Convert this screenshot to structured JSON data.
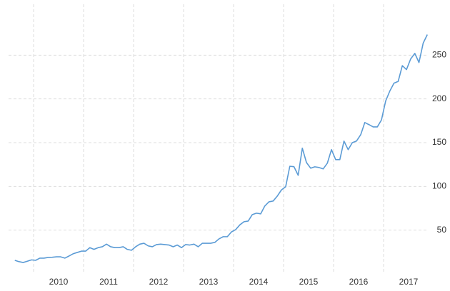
{
  "chart_data": {
    "type": "line",
    "x": [
      2009.625,
      2009.708,
      2009.792,
      2009.875,
      2009.958,
      2010.042,
      2010.125,
      2010.208,
      2010.292,
      2010.375,
      2010.458,
      2010.542,
      2010.625,
      2010.708,
      2010.792,
      2010.875,
      2010.958,
      2011.042,
      2011.125,
      2011.208,
      2011.292,
      2011.375,
      2011.458,
      2011.542,
      2011.625,
      2011.708,
      2011.792,
      2011.875,
      2011.958,
      2012.042,
      2012.125,
      2012.208,
      2012.292,
      2012.375,
      2012.458,
      2012.542,
      2012.625,
      2012.708,
      2012.792,
      2012.875,
      2012.958,
      2013.042,
      2013.125,
      2013.208,
      2013.292,
      2013.375,
      2013.458,
      2013.542,
      2013.625,
      2013.708,
      2013.792,
      2013.875,
      2013.958,
      2014.042,
      2014.125,
      2014.208,
      2014.292,
      2014.375,
      2014.458,
      2014.542,
      2014.625,
      2014.708,
      2014.792,
      2014.875,
      2014.958,
      2015.042,
      2015.125,
      2015.208,
      2015.292,
      2015.375,
      2015.458,
      2015.542,
      2015.625,
      2015.708,
      2015.792,
      2015.875,
      2015.958,
      2016.042,
      2016.125,
      2016.208,
      2016.292,
      2016.375,
      2016.458,
      2016.542,
      2016.625,
      2016.708,
      2016.792,
      2016.875,
      2016.958,
      2017.042,
      2017.125,
      2017.208,
      2017.292,
      2017.375,
      2017.458,
      2017.542,
      2017.625,
      2017.708,
      2017.792,
      2017.875
    ],
    "series": [
      {
        "color": "#5b9bd5",
        "values": [
          15.5,
          14,
          13,
          14.5,
          16,
          15.5,
          18,
          18,
          18.8,
          19,
          19.5,
          19.5,
          18,
          20.4,
          23,
          24.5,
          26,
          26,
          30,
          28,
          30,
          31,
          34,
          31,
          30,
          30,
          31,
          28,
          27,
          31,
          34,
          35,
          32,
          31,
          33.5,
          34,
          33.5,
          33,
          31,
          33,
          30,
          33.5,
          33,
          34,
          31,
          35,
          35,
          35,
          36,
          40,
          42.5,
          42.5,
          48,
          50.6,
          56,
          59.6,
          60.4,
          67.8,
          69.4,
          68.6,
          77.6,
          82.4,
          83.3,
          89,
          96,
          99.6,
          123,
          122.5,
          112.7,
          143.7,
          127.3,
          120.8,
          122.4,
          121.6,
          120,
          126.5,
          142,
          130.6,
          130.6,
          151.8,
          142,
          150,
          151.8,
          159,
          173,
          170.6,
          168,
          168,
          176,
          197.6,
          209,
          218,
          220,
          238,
          233.5,
          245.7,
          252,
          241.6,
          263.7,
          273.5
        ]
      }
    ],
    "xlim": [
      2009.5,
      2017.9
    ],
    "xticks": [
      2010,
      2011,
      2012,
      2013,
      2014,
      2015,
      2016,
      2017
    ],
    "ylim": [
      0,
      300
    ],
    "yticks": [
      50,
      100,
      150,
      200,
      250
    ],
    "grid": true
  }
}
